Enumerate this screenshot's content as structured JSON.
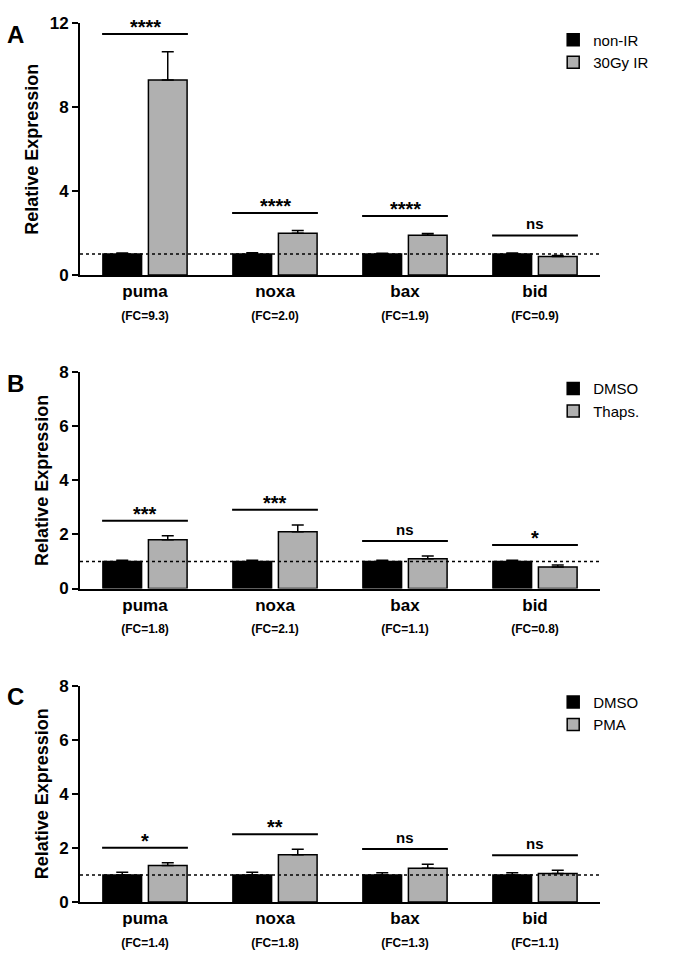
{
  "chart_data": [
    {
      "type": "bar",
      "title": "A",
      "categories": [
        "puma",
        "noxa",
        "bax",
        "bid"
      ],
      "category_notes": [
        "(FC=9.3)",
        "(FC=2.0)",
        "(FC=1.9)",
        "(FC=0.9)"
      ],
      "significance": [
        "****",
        "****",
        "****",
        "ns"
      ],
      "y_label": "Relative Expression",
      "ylim": [
        0,
        12
      ],
      "yticks": [
        0,
        4,
        8,
        12
      ],
      "reference_line": 1,
      "legend": "upper right",
      "grid": false,
      "series": [
        {
          "name": "non-IR",
          "color": "#000000",
          "values": [
            1.0,
            1.0,
            1.0,
            1.0
          ],
          "errors": [
            0.05,
            0.06,
            0.04,
            0.05
          ]
        },
        {
          "name": "30Gy IR",
          "color": "#b0b0b0",
          "values": [
            9.3,
            2.0,
            1.9,
            0.88
          ],
          "errors": [
            1.35,
            0.12,
            0.08,
            0.05
          ]
        }
      ]
    },
    {
      "type": "bar",
      "title": "B",
      "categories": [
        "puma",
        "noxa",
        "bax",
        "bid"
      ],
      "category_notes": [
        "(FC=1.8)",
        "(FC=2.1)",
        "(FC=1.1)",
        "(FC=0.8)"
      ],
      "significance": [
        "***",
        "***",
        "ns",
        "*"
      ],
      "y_label": "Relative Expression",
      "ylim": [
        0,
        8
      ],
      "yticks": [
        0,
        2,
        4,
        6,
        8
      ],
      "reference_line": 1,
      "legend": "upper right",
      "grid": false,
      "series": [
        {
          "name": "DMSO",
          "color": "#000000",
          "values": [
            1.0,
            1.0,
            1.0,
            1.0
          ],
          "errors": [
            0.05,
            0.05,
            0.05,
            0.05
          ]
        },
        {
          "name": "Thaps.",
          "color": "#b0b0b0",
          "values": [
            1.8,
            2.1,
            1.1,
            0.8
          ],
          "errors": [
            0.15,
            0.25,
            0.1,
            0.07
          ]
        }
      ]
    },
    {
      "type": "bar",
      "title": "C",
      "categories": [
        "puma",
        "noxa",
        "bax",
        "bid"
      ],
      "category_notes": [
        "(FC=1.4)",
        "(FC=1.8)",
        "(FC=1.3)",
        "(FC=1.1)"
      ],
      "significance": [
        "*",
        "**",
        "ns",
        "ns"
      ],
      "y_label": "Relative Expression",
      "ylim": [
        0,
        8
      ],
      "yticks": [
        0,
        2,
        4,
        6,
        8
      ],
      "reference_line": 1,
      "legend": "upper right",
      "grid": false,
      "series": [
        {
          "name": "DMSO",
          "color": "#000000",
          "values": [
            1.0,
            1.0,
            1.0,
            1.0
          ],
          "errors": [
            0.1,
            0.1,
            0.08,
            0.08
          ]
        },
        {
          "name": "PMA",
          "color": "#b0b0b0",
          "values": [
            1.35,
            1.75,
            1.25,
            1.05
          ],
          "errors": [
            0.1,
            0.2,
            0.15,
            0.12
          ]
        }
      ]
    }
  ]
}
